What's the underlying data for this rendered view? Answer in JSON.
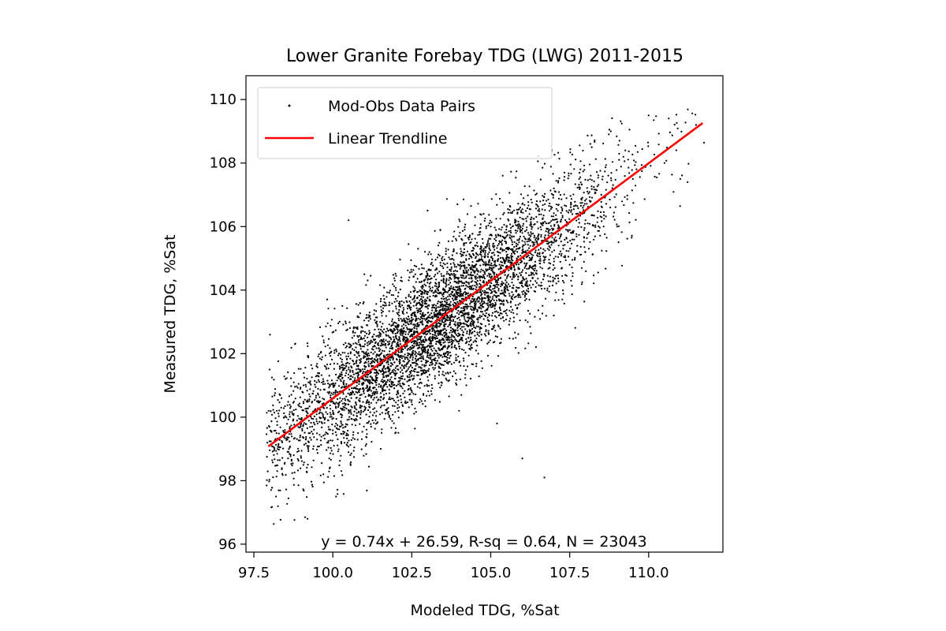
{
  "chart_data": {
    "type": "scatter",
    "title": "Lower Granite Forebay TDG (LWG) 2011-2015",
    "xlabel": "Modeled TDG, %Sat",
    "ylabel": "Measured TDG, %Sat",
    "xlim": [
      97.25,
      112.35
    ],
    "ylim": [
      95.75,
      110.75
    ],
    "xticks": [
      97.5,
      100.0,
      102.5,
      105.0,
      107.5,
      110.0
    ],
    "xtick_labels": [
      "97.5",
      "100.0",
      "102.5",
      "105.0",
      "107.5",
      "110.0"
    ],
    "yticks": [
      96,
      98,
      100,
      102,
      104,
      106,
      108,
      110
    ],
    "ytick_labels": [
      "96",
      "98",
      "100",
      "102",
      "104",
      "106",
      "108",
      "110"
    ],
    "grid": false,
    "legend": {
      "placement": "top-left",
      "entries": [
        {
          "label": "Mod-Obs Data Pairs",
          "marker": "dot",
          "color": "#000000"
        },
        {
          "label": "Linear Trendline",
          "marker": "line",
          "color": "#ff0000"
        }
      ]
    },
    "series": [
      {
        "name": "Mod-Obs Data Pairs",
        "kind": "scatter",
        "color": "#000000",
        "count": 23043,
        "sample_points": [
          [
            98.0,
            101.5
          ],
          [
            98.2,
            97.5
          ],
          [
            98.5,
            101.2
          ],
          [
            98.8,
            102.3
          ],
          [
            99.0,
            99.8
          ],
          [
            99.2,
            96.8
          ],
          [
            99.5,
            100.5
          ],
          [
            99.7,
            98.2
          ],
          [
            100.0,
            100.2
          ],
          [
            100.1,
            97.5
          ],
          [
            100.3,
            103.5
          ],
          [
            100.5,
            101.0
          ],
          [
            100.5,
            106.2
          ],
          [
            100.8,
            99.5
          ],
          [
            101.0,
            102.0
          ],
          [
            101.0,
            104.5
          ],
          [
            101.3,
            100.8
          ],
          [
            101.5,
            103.0
          ],
          [
            101.8,
            101.5
          ],
          [
            102.0,
            102.5
          ],
          [
            102.0,
            104.0
          ],
          [
            102.3,
            100.5
          ],
          [
            102.5,
            103.2
          ],
          [
            102.7,
            101.8
          ],
          [
            103.0,
            103.0
          ],
          [
            103.0,
            106.5
          ],
          [
            103.2,
            101.5
          ],
          [
            103.5,
            103.8
          ],
          [
            103.7,
            102.5
          ],
          [
            104.0,
            104.0
          ],
          [
            104.0,
            100.2
          ],
          [
            104.3,
            104.8
          ],
          [
            104.5,
            103.5
          ],
          [
            104.7,
            102.8
          ],
          [
            105.0,
            104.5
          ],
          [
            105.0,
            106.0
          ],
          [
            105.2,
            99.8
          ],
          [
            105.5,
            105.0
          ],
          [
            105.8,
            103.8
          ],
          [
            106.0,
            105.8
          ],
          [
            106.0,
            98.7
          ],
          [
            106.3,
            104.5
          ],
          [
            106.5,
            106.5
          ],
          [
            106.7,
            98.1
          ],
          [
            107.0,
            105.5
          ],
          [
            107.0,
            107.2
          ],
          [
            107.3,
            106.0
          ],
          [
            107.5,
            104.8
          ],
          [
            107.8,
            107.5
          ],
          [
            108.0,
            106.2
          ],
          [
            108.2,
            108.5
          ],
          [
            108.5,
            107.0
          ],
          [
            108.8,
            109.0
          ],
          [
            109.0,
            106.0
          ],
          [
            109.2,
            108.2
          ],
          [
            109.5,
            107.5
          ],
          [
            110.0,
            109.5
          ],
          [
            110.5,
            108.0
          ],
          [
            111.0,
            107.5
          ],
          [
            111.5,
            109.2
          ]
        ]
      },
      {
        "name": "Linear Trendline",
        "kind": "line",
        "color": "#ff0000",
        "x": [
          97.96,
          111.71
        ],
        "y": [
          99.08,
          109.26
        ]
      }
    ],
    "annotation": "y = 0.74x + 26.59, R-sq = 0.64, N = 23043"
  }
}
